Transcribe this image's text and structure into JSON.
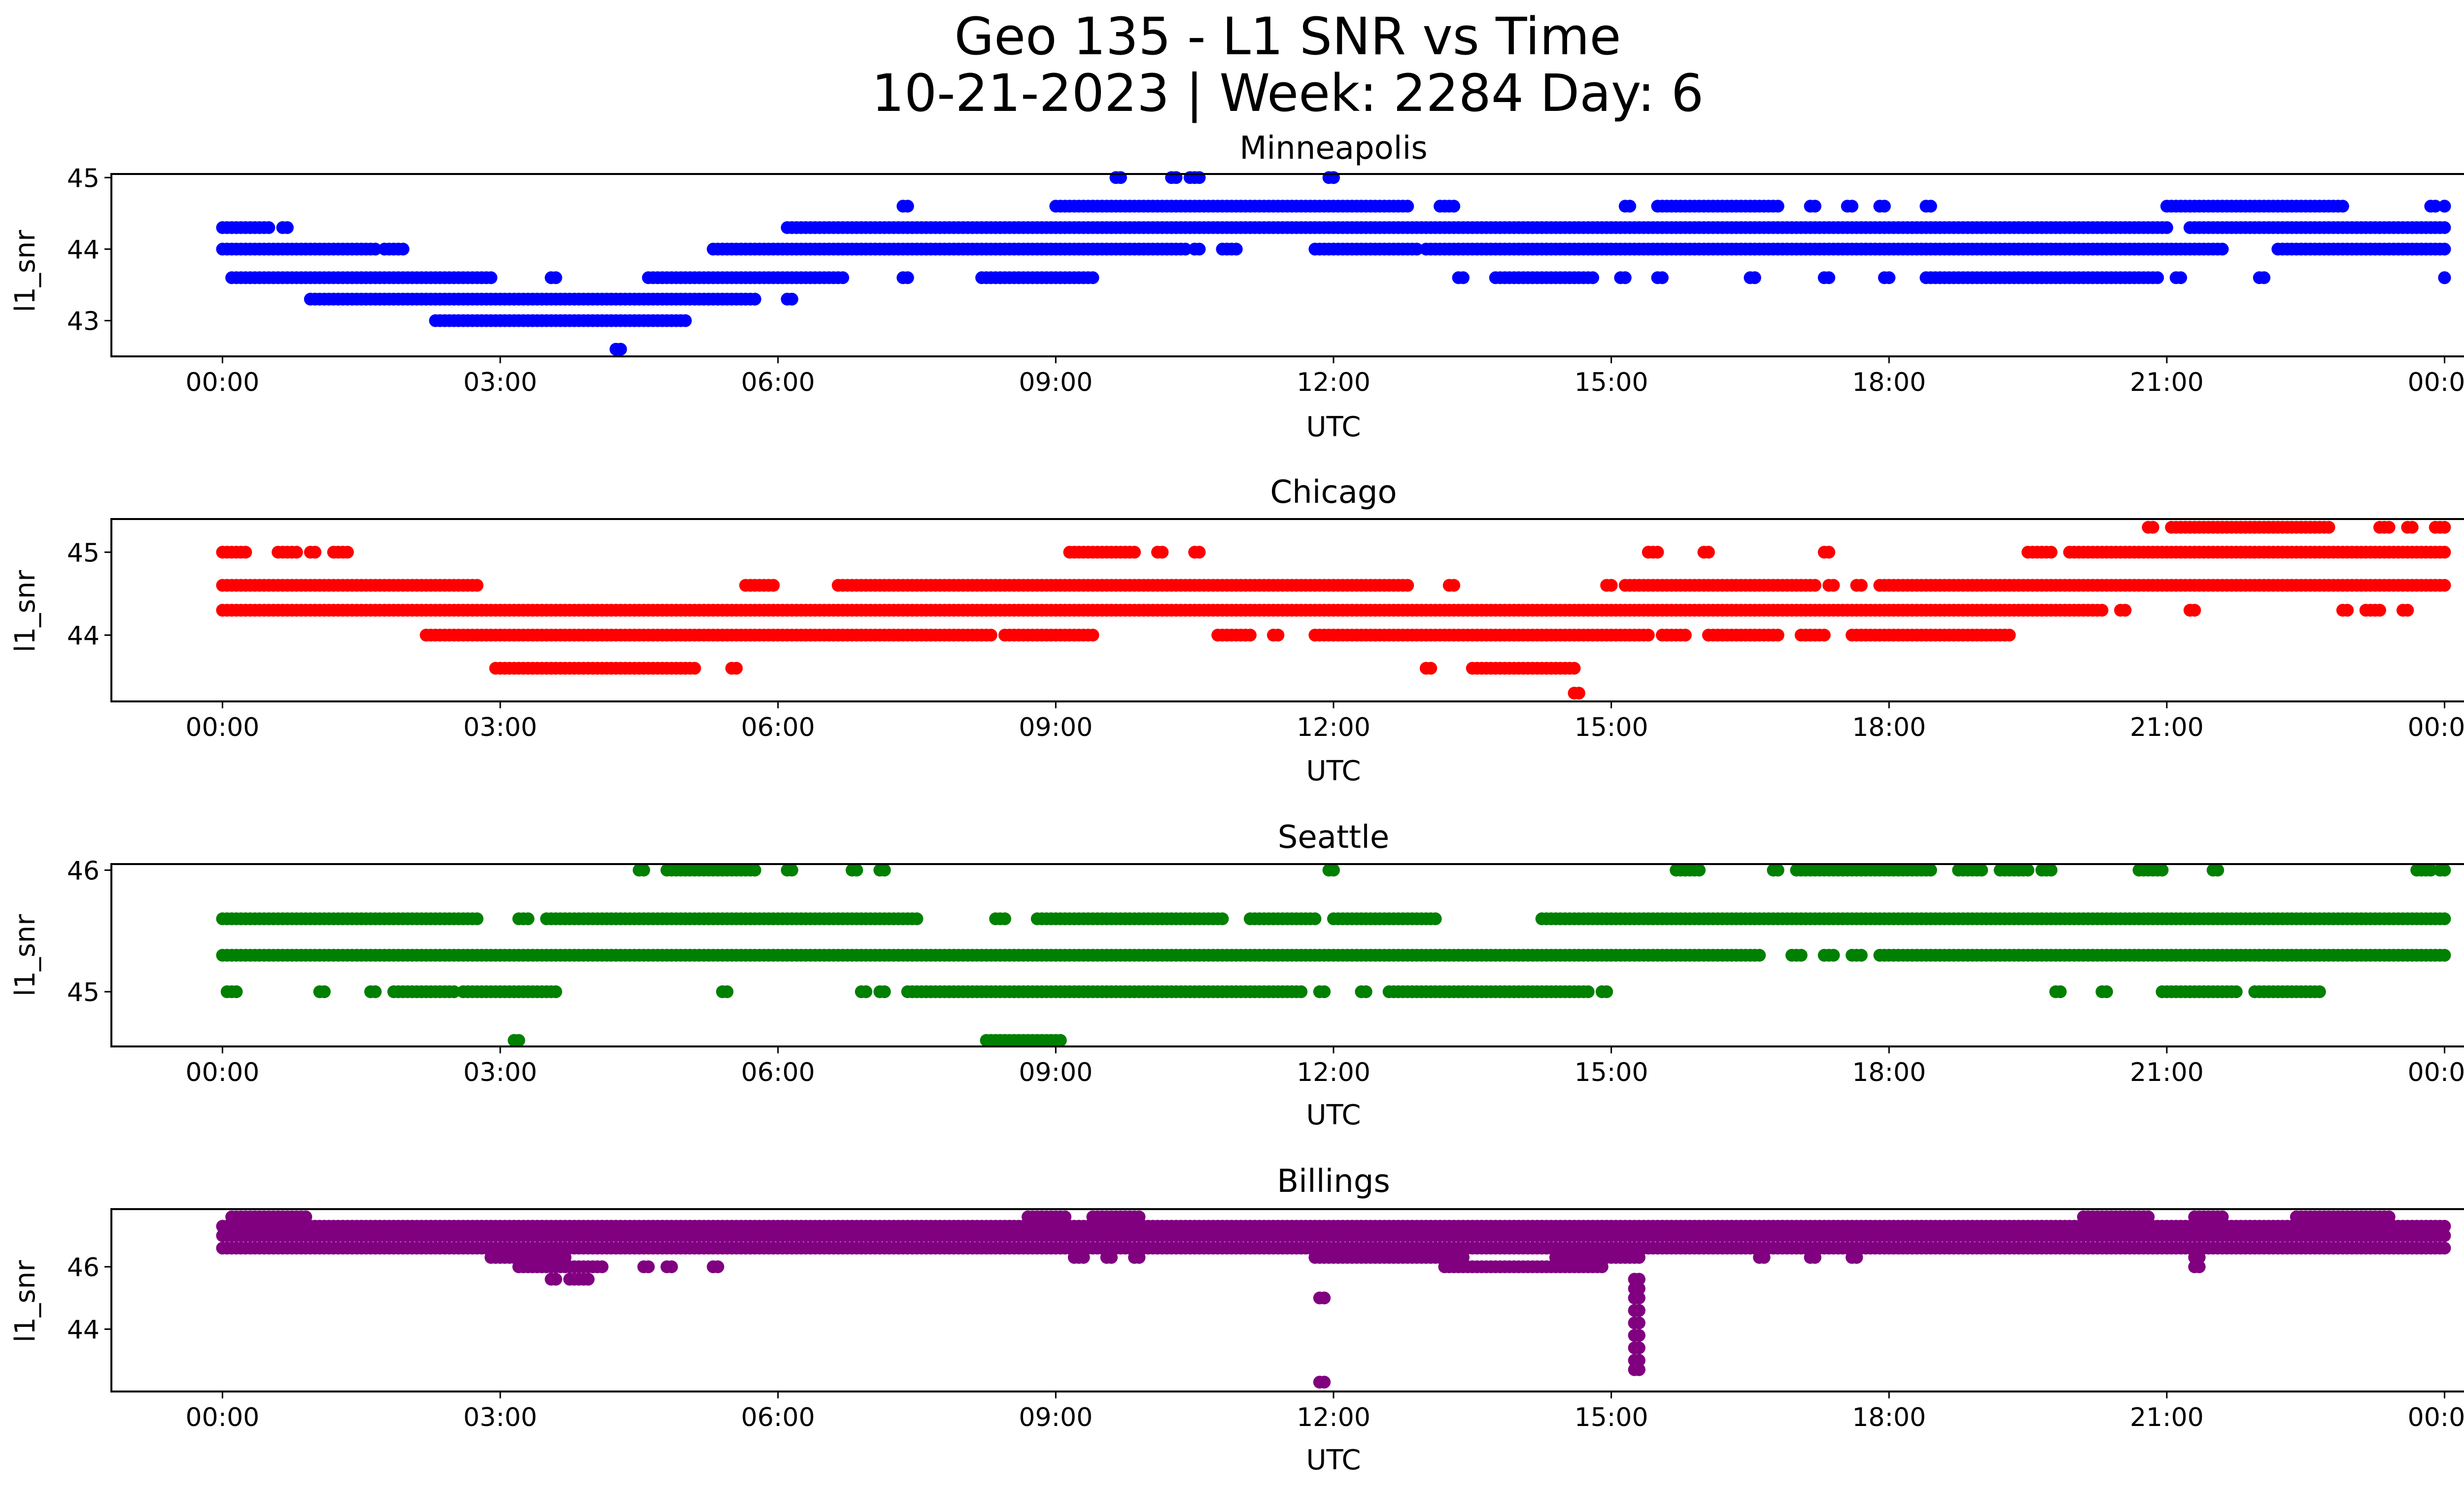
{
  "figure": {
    "title_line1": "Geo 135 - L1 SNR vs Time",
    "title_line2": "10-21-2023 | Week: 2284 Day: 6"
  },
  "chart_data": [
    {
      "type": "scatter",
      "title": "Minneapolis",
      "xlabel": "UTC",
      "ylabel": "l1_snr",
      "color": "#0000ff",
      "xlim": [
        "2023-10-21T00:00Z",
        "2023-10-22T00:00Z"
      ],
      "ylim": [
        42.5,
        45.05
      ],
      "yticks": [
        43,
        44,
        45
      ],
      "xtick_labels": [
        "00:00",
        "03:00",
        "06:00",
        "09:00",
        "12:00",
        "15:00",
        "18:00",
        "21:00",
        "00:00"
      ],
      "levels": [
        {
          "y": 42.6,
          "segments": [
            [
              4.25,
              4.3
            ]
          ]
        },
        {
          "y": 43.0,
          "segments": [
            [
              2.3,
              5.0
            ]
          ]
        },
        {
          "y": 43.3,
          "segments": [
            [
              0.95,
              5.75
            ],
            [
              6.1,
              6.15
            ]
          ]
        },
        {
          "y": 43.6,
          "segments": [
            [
              0.1,
              2.9
            ],
            [
              3.55,
              3.6
            ],
            [
              4.6,
              6.7
            ],
            [
              7.35,
              7.4
            ],
            [
              8.2,
              9.4
            ],
            [
              13.35,
              13.4
            ],
            [
              13.75,
              14.8
            ],
            [
              15.1,
              15.15
            ],
            [
              15.5,
              15.55
            ],
            [
              16.5,
              16.55
            ],
            [
              17.3,
              17.35
            ],
            [
              17.95,
              18.0
            ],
            [
              18.4,
              20.9
            ],
            [
              21.1,
              21.15
            ],
            [
              22.0,
              22.05
            ],
            [
              24.0,
              24.0
            ]
          ]
        },
        {
          "y": 44.0,
          "segments": [
            [
              0.0,
              1.65
            ],
            [
              1.75,
              1.95
            ],
            [
              5.3,
              10.4
            ],
            [
              10.5,
              10.55
            ],
            [
              10.8,
              10.95
            ],
            [
              11.8,
              12.9
            ],
            [
              13.0,
              21.6
            ],
            [
              22.2,
              24.0
            ]
          ]
        },
        {
          "y": 44.3,
          "segments": [
            [
              0.0,
              0.5
            ],
            [
              0.65,
              0.7
            ],
            [
              6.1,
              21.0
            ],
            [
              21.25,
              24.0
            ]
          ]
        },
        {
          "y": 44.6,
          "segments": [
            [
              7.35,
              7.4
            ],
            [
              9.0,
              12.8
            ],
            [
              13.15,
              13.3
            ],
            [
              15.15,
              15.2
            ],
            [
              15.5,
              16.8
            ],
            [
              17.15,
              17.2
            ],
            [
              17.55,
              17.6
            ],
            [
              17.9,
              17.95
            ],
            [
              18.4,
              18.45
            ],
            [
              21.0,
              22.9
            ],
            [
              23.85,
              23.9
            ],
            [
              24.0,
              24.0
            ]
          ]
        },
        {
          "y": 45.0,
          "segments": [
            [
              9.65,
              9.7
            ],
            [
              10.25,
              10.3
            ],
            [
              10.45,
              10.55
            ],
            [
              11.95,
              12.0
            ]
          ]
        }
      ]
    },
    {
      "type": "scatter",
      "title": "Chicago",
      "xlabel": "UTC",
      "ylabel": "l1_snr",
      "color": "#ff0000",
      "xlim": [
        "2023-10-21T00:00Z",
        "2023-10-22T00:00Z"
      ],
      "ylim": [
        43.2,
        45.4
      ],
      "yticks": [
        44,
        45
      ],
      "xtick_labels": [
        "00:00",
        "03:00",
        "06:00",
        "09:00",
        "12:00",
        "15:00",
        "18:00",
        "21:00",
        "00:00"
      ],
      "levels": [
        {
          "y": 43.3,
          "segments": [
            [
              14.6,
              14.65
            ]
          ]
        },
        {
          "y": 43.6,
          "segments": [
            [
              2.95,
              5.1
            ],
            [
              5.5,
              5.55
            ],
            [
              13.0,
              13.05
            ],
            [
              13.5,
              14.6
            ]
          ]
        },
        {
          "y": 44.0,
          "segments": [
            [
              2.2,
              8.3
            ],
            [
              8.45,
              9.4
            ],
            [
              10.75,
              11.1
            ],
            [
              11.35,
              11.4
            ],
            [
              11.8,
              15.4
            ],
            [
              15.55,
              15.8
            ],
            [
              16.05,
              16.8
            ],
            [
              17.05,
              17.3
            ],
            [
              17.6,
              19.3
            ]
          ]
        },
        {
          "y": 44.3,
          "segments": [
            [
              0.0,
              20.3
            ],
            [
              20.5,
              20.55
            ],
            [
              21.25,
              21.3
            ],
            [
              22.9,
              22.95
            ],
            [
              23.15,
              23.3
            ],
            [
              23.55,
              23.6
            ]
          ]
        },
        {
          "y": 44.6,
          "segments": [
            [
              0.0,
              2.75
            ],
            [
              5.65,
              5.95
            ],
            [
              6.65,
              12.8
            ],
            [
              13.25,
              13.3
            ],
            [
              14.95,
              15.0
            ],
            [
              15.15,
              17.2
            ],
            [
              17.35,
              17.4
            ],
            [
              17.65,
              17.7
            ],
            [
              17.9,
              24.0
            ]
          ]
        },
        {
          "y": 45.0,
          "segments": [
            [
              0.0,
              0.25
            ],
            [
              0.6,
              0.8
            ],
            [
              0.95,
              1.0
            ],
            [
              1.2,
              1.35
            ],
            [
              9.15,
              9.85
            ],
            [
              10.1,
              10.15
            ],
            [
              10.5,
              10.55
            ],
            [
              15.4,
              15.5
            ],
            [
              16.0,
              16.05
            ],
            [
              17.3,
              17.35
            ],
            [
              19.5,
              19.75
            ],
            [
              19.95,
              24.0
            ]
          ]
        },
        {
          "y": 45.3,
          "segments": [
            [
              20.8,
              20.85
            ],
            [
              21.05,
              22.75
            ],
            [
              23.3,
              23.4
            ],
            [
              23.6,
              23.65
            ],
            [
              23.9,
              24.0
            ]
          ]
        }
      ]
    },
    {
      "type": "scatter",
      "title": "Seattle",
      "xlabel": "UTC",
      "ylabel": "l1_snr",
      "color": "#008000",
      "xlim": [
        "2023-10-21T00:00Z",
        "2023-10-22T00:00Z"
      ],
      "ylim": [
        44.55,
        46.05
      ],
      "yticks": [
        45,
        46
      ],
      "xtick_labels": [
        "00:00",
        "03:00",
        "06:00",
        "09:00",
        "12:00",
        "15:00",
        "18:00",
        "21:00",
        "00:00"
      ],
      "levels": [
        {
          "y": 44.6,
          "segments": [
            [
              3.15,
              3.2
            ],
            [
              8.25,
              9.05
            ]
          ]
        },
        {
          "y": 45.0,
          "segments": [
            [
              0.05,
              0.15
            ],
            [
              1.05,
              1.1
            ],
            [
              1.6,
              1.65
            ],
            [
              1.85,
              2.5
            ],
            [
              2.6,
              3.6
            ],
            [
              5.4,
              5.45
            ],
            [
              6.9,
              6.95
            ],
            [
              7.1,
              7.15
            ],
            [
              7.4,
              11.65
            ],
            [
              11.85,
              11.9
            ],
            [
              12.3,
              12.35
            ],
            [
              12.6,
              14.75
            ],
            [
              14.9,
              14.95
            ],
            [
              19.8,
              19.85
            ],
            [
              20.3,
              20.35
            ],
            [
              20.95,
              21.75
            ],
            [
              21.95,
              22.55
            ],
            [
              22.6,
              22.65
            ]
          ]
        },
        {
          "y": 45.3,
          "segments": [
            [
              0.0,
              16.6
            ],
            [
              16.95,
              17.05
            ],
            [
              17.3,
              17.4
            ],
            [
              17.6,
              17.7
            ],
            [
              17.9,
              24.0
            ]
          ]
        },
        {
          "y": 45.6,
          "segments": [
            [
              0.0,
              2.75
            ],
            [
              3.2,
              3.3
            ],
            [
              3.5,
              7.5
            ],
            [
              8.35,
              8.45
            ],
            [
              8.8,
              10.8
            ],
            [
              11.1,
              11.8
            ],
            [
              12.0,
              13.1
            ],
            [
              14.25,
              24.0
            ]
          ]
        },
        {
          "y": 46.0,
          "segments": [
            [
              4.5,
              4.55
            ],
            [
              4.8,
              5.75
            ],
            [
              6.1,
              6.15
            ],
            [
              6.8,
              6.85
            ],
            [
              7.1,
              7.15
            ],
            [
              11.95,
              12.0
            ],
            [
              15.7,
              15.95
            ],
            [
              16.75,
              16.8
            ],
            [
              17.0,
              18.45
            ],
            [
              18.75,
              19.0
            ],
            [
              19.2,
              19.5
            ],
            [
              19.65,
              19.75
            ],
            [
              20.7,
              20.95
            ],
            [
              21.5,
              21.55
            ],
            [
              23.7,
              23.85
            ],
            [
              23.95,
              24.0
            ]
          ]
        }
      ]
    },
    {
      "type": "scatter",
      "title": "Billings",
      "xlabel": "UTC",
      "ylabel": "l1_snr",
      "color": "#800080",
      "xlim": [
        "2023-10-21T00:00Z",
        "2023-10-22T00:00Z"
      ],
      "ylim": [
        42.0,
        47.85
      ],
      "yticks": [
        44,
        46
      ],
      "xtick_labels": [
        "00:00",
        "03:00",
        "06:00",
        "09:00",
        "12:00",
        "15:00",
        "18:00",
        "21:00",
        "00:00"
      ],
      "levels": [
        {
          "y": 42.3,
          "segments": [
            [
              11.85,
              11.9
            ]
          ]
        },
        {
          "y": 42.7,
          "segments": [
            [
              15.25,
              15.3
            ]
          ]
        },
        {
          "y": 43.0,
          "segments": [
            [
              15.25,
              15.3
            ]
          ]
        },
        {
          "y": 43.4,
          "segments": [
            [
              15.25,
              15.3
            ]
          ]
        },
        {
          "y": 43.8,
          "segments": [
            [
              15.25,
              15.3
            ]
          ]
        },
        {
          "y": 44.2,
          "segments": [
            [
              15.25,
              15.3
            ]
          ]
        },
        {
          "y": 44.6,
          "segments": [
            [
              15.25,
              15.3
            ]
          ]
        },
        {
          "y": 45.0,
          "segments": [
            [
              11.85,
              11.9
            ],
            [
              15.25,
              15.3
            ]
          ]
        },
        {
          "y": 45.3,
          "segments": [
            [
              15.25,
              15.3
            ]
          ]
        },
        {
          "y": 45.6,
          "segments": [
            [
              3.55,
              3.6
            ],
            [
              3.75,
              3.95
            ],
            [
              15.25,
              15.3
            ]
          ]
        },
        {
          "y": 46.0,
          "segments": [
            [
              3.2,
              4.1
            ],
            [
              4.55,
              4.6
            ],
            [
              4.8,
              4.85
            ],
            [
              5.3,
              5.35
            ],
            [
              13.2,
              14.9
            ],
            [
              21.3,
              21.35
            ]
          ]
        },
        {
          "y": 46.3,
          "segments": [
            [
              2.9,
              3.7
            ],
            [
              9.2,
              9.3
            ],
            [
              9.55,
              9.6
            ],
            [
              9.85,
              9.9
            ],
            [
              11.8,
              13.4
            ],
            [
              14.4,
              15.3
            ],
            [
              16.6,
              16.65
            ],
            [
              17.15,
              17.2
            ],
            [
              17.6,
              17.65
            ],
            [
              21.3,
              21.35
            ]
          ]
        },
        {
          "y": 46.6,
          "segments": [
            [
              0.0,
              24.0
            ]
          ]
        },
        {
          "y": 47.0,
          "segments": [
            [
              0.0,
              24.0
            ]
          ]
        },
        {
          "y": 47.3,
          "segments": [
            [
              0.0,
              24.0
            ]
          ]
        },
        {
          "y": 47.6,
          "segments": [
            [
              0.1,
              0.9
            ],
            [
              8.7,
              9.1
            ],
            [
              9.4,
              9.9
            ],
            [
              20.1,
              20.8
            ],
            [
              21.3,
              21.6
            ],
            [
              22.4,
              23.4
            ]
          ]
        }
      ]
    }
  ]
}
